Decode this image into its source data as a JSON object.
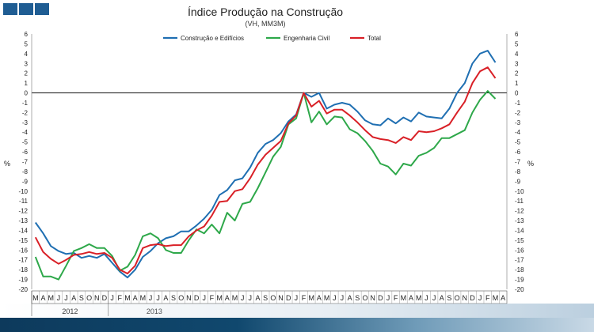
{
  "chart_data": {
    "type": "line",
    "title": "Índice Produção na Construção",
    "subtitle": "(VH, MM3M)",
    "ylabel_left": "%",
    "ylabel_right": "%",
    "ylim": [
      -20,
      6
    ],
    "yticks": [
      6,
      5,
      4,
      3,
      2,
      1,
      0,
      -1,
      -2,
      -3,
      -4,
      -5,
      -6,
      -7,
      -8,
      -9,
      -10,
      -11,
      -12,
      -13,
      -14,
      -15,
      -16,
      -17,
      -18,
      -19,
      -20
    ],
    "legend_position": "top",
    "x_month_labels": [
      "M",
      "A",
      "M",
      "J",
      "J",
      "A",
      "S",
      "O",
      "N",
      "D",
      "J",
      "F",
      "M",
      "A",
      "M",
      "J",
      "J",
      "A",
      "S",
      "O",
      "N",
      "D",
      "J",
      "F",
      "M",
      "A",
      "M",
      "J",
      "J",
      "A",
      "S",
      "O",
      "N",
      "D",
      "J",
      "F",
      "M",
      "A",
      "M",
      "J",
      "J",
      "A",
      "S",
      "O",
      "N",
      "D",
      "J",
      "F",
      "M",
      "A",
      "M",
      "J",
      "J",
      "A",
      "S",
      "O",
      "N",
      "D",
      "J",
      "F",
      "M",
      "A"
    ],
    "year_labels": [
      {
        "label": "2012",
        "start_index": 0
      },
      {
        "label": "2013",
        "start_index": 10
      }
    ],
    "series": [
      {
        "name": "Construção e Edifícios",
        "color": "#1f6fb2",
        "values": [
          -13.2,
          -14.3,
          -15.6,
          -16.1,
          -16.4,
          -16.3,
          -16.8,
          -16.6,
          -16.8,
          -16.4,
          -17.3,
          -18.2,
          -18.8,
          -18.0,
          -16.7,
          -16.1,
          -15.3,
          -14.8,
          -14.6,
          -14.1,
          -14.1,
          -13.5,
          -12.8,
          -11.9,
          -10.4,
          -9.9,
          -8.9,
          -8.7,
          -7.6,
          -6.1,
          -5.2,
          -4.8,
          -4.1,
          -2.9,
          -2.2,
          0.0,
          -0.4,
          0.0,
          -1.6,
          -1.2,
          -1.0,
          -1.2,
          -1.9,
          -2.8,
          -3.2,
          -3.3,
          -2.6,
          -3.1,
          -2.5,
          -2.9,
          -2.0,
          -2.4,
          -2.5,
          -2.6,
          -1.6,
          0.0,
          1.0,
          3.0,
          4.0,
          4.3,
          3.1
        ]
      },
      {
        "name": "Engenharia Civil",
        "color": "#2ea84a",
        "values": [
          -16.7,
          -18.7,
          -18.7,
          -19.0,
          -17.6,
          -16.1,
          -15.8,
          -15.4,
          -15.8,
          -15.8,
          -16.6,
          -18.1,
          -17.7,
          -16.5,
          -14.6,
          -14.3,
          -14.8,
          -16.0,
          -16.3,
          -16.3,
          -15.0,
          -13.9,
          -14.3,
          -13.4,
          -14.3,
          -12.2,
          -13.0,
          -11.3,
          -11.1,
          -9.7,
          -8.1,
          -6.5,
          -5.5,
          -3.2,
          -2.6,
          0.0,
          -3.0,
          -1.9,
          -3.2,
          -2.4,
          -2.5,
          -3.7,
          -4.1,
          -4.9,
          -5.9,
          -7.2,
          -7.5,
          -8.3,
          -7.2,
          -7.4,
          -6.4,
          -6.1,
          -5.6,
          -4.6,
          -4.6,
          -4.2,
          -3.8,
          -2.0,
          -0.7,
          0.2,
          -0.6
        ]
      },
      {
        "name": "Total",
        "color": "#d92027",
        "values": [
          -14.7,
          -16.2,
          -16.9,
          -17.4,
          -17.0,
          -16.5,
          -16.4,
          -16.2,
          -16.4,
          -16.3,
          -16.8,
          -18.0,
          -18.4,
          -17.6,
          -15.8,
          -15.5,
          -15.4,
          -15.6,
          -15.5,
          -15.5,
          -14.6,
          -14.0,
          -13.6,
          -12.5,
          -11.1,
          -11.0,
          -10.0,
          -9.8,
          -8.7,
          -7.3,
          -6.3,
          -5.6,
          -4.9,
          -3.1,
          -2.3,
          0.0,
          -1.4,
          -0.8,
          -2.1,
          -1.7,
          -1.7,
          -2.3,
          -3.0,
          -3.8,
          -4.5,
          -4.7,
          -4.8,
          -5.1,
          -4.5,
          -4.8,
          -3.9,
          -4.0,
          -3.9,
          -3.6,
          -3.2,
          -2.0,
          -0.9,
          1.0,
          2.2,
          2.6,
          1.5
        ]
      }
    ]
  }
}
